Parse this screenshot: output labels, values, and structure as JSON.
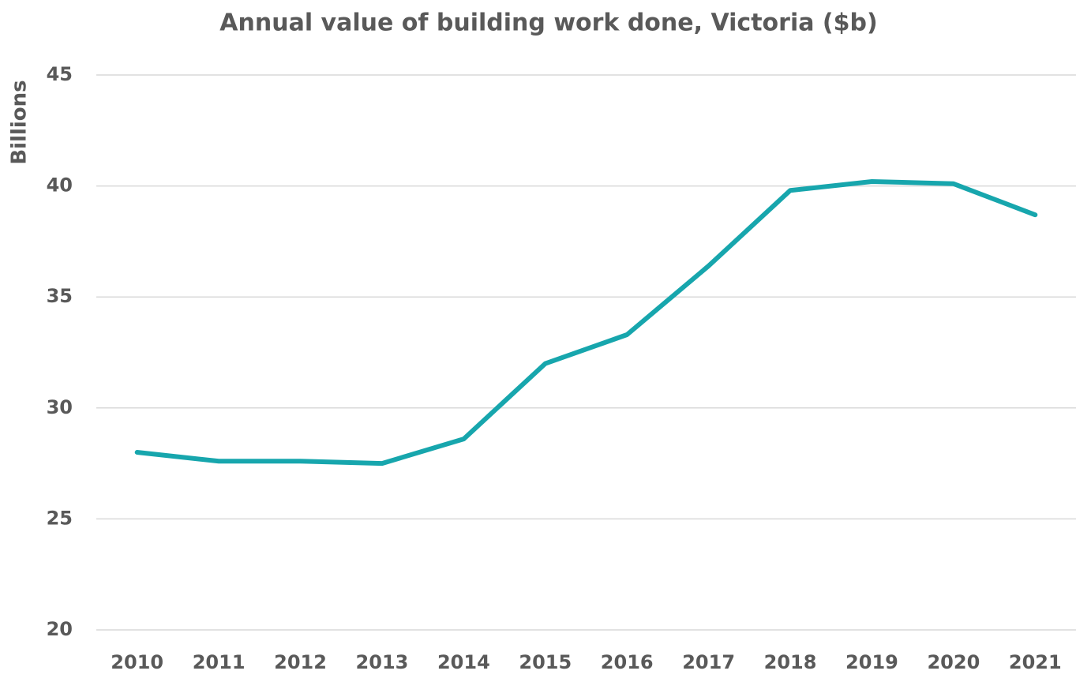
{
  "chart_data": {
    "type": "line",
    "title": "Annual value of building work done, Victoria ($b)",
    "y_label": "Billions",
    "categories": [
      "2010",
      "2011",
      "2012",
      "2013",
      "2014",
      "2015",
      "2016",
      "2017",
      "2018",
      "2019",
      "2020",
      "2021"
    ],
    "values": [
      28.0,
      27.6,
      27.6,
      27.5,
      28.6,
      32.0,
      33.3,
      36.4,
      39.8,
      40.2,
      40.1,
      38.7
    ],
    "color": "#17a6ad",
    "ylim": [
      20,
      45
    ],
    "yticks": [
      20,
      25,
      30,
      35,
      40,
      45
    ],
    "grid": true
  }
}
